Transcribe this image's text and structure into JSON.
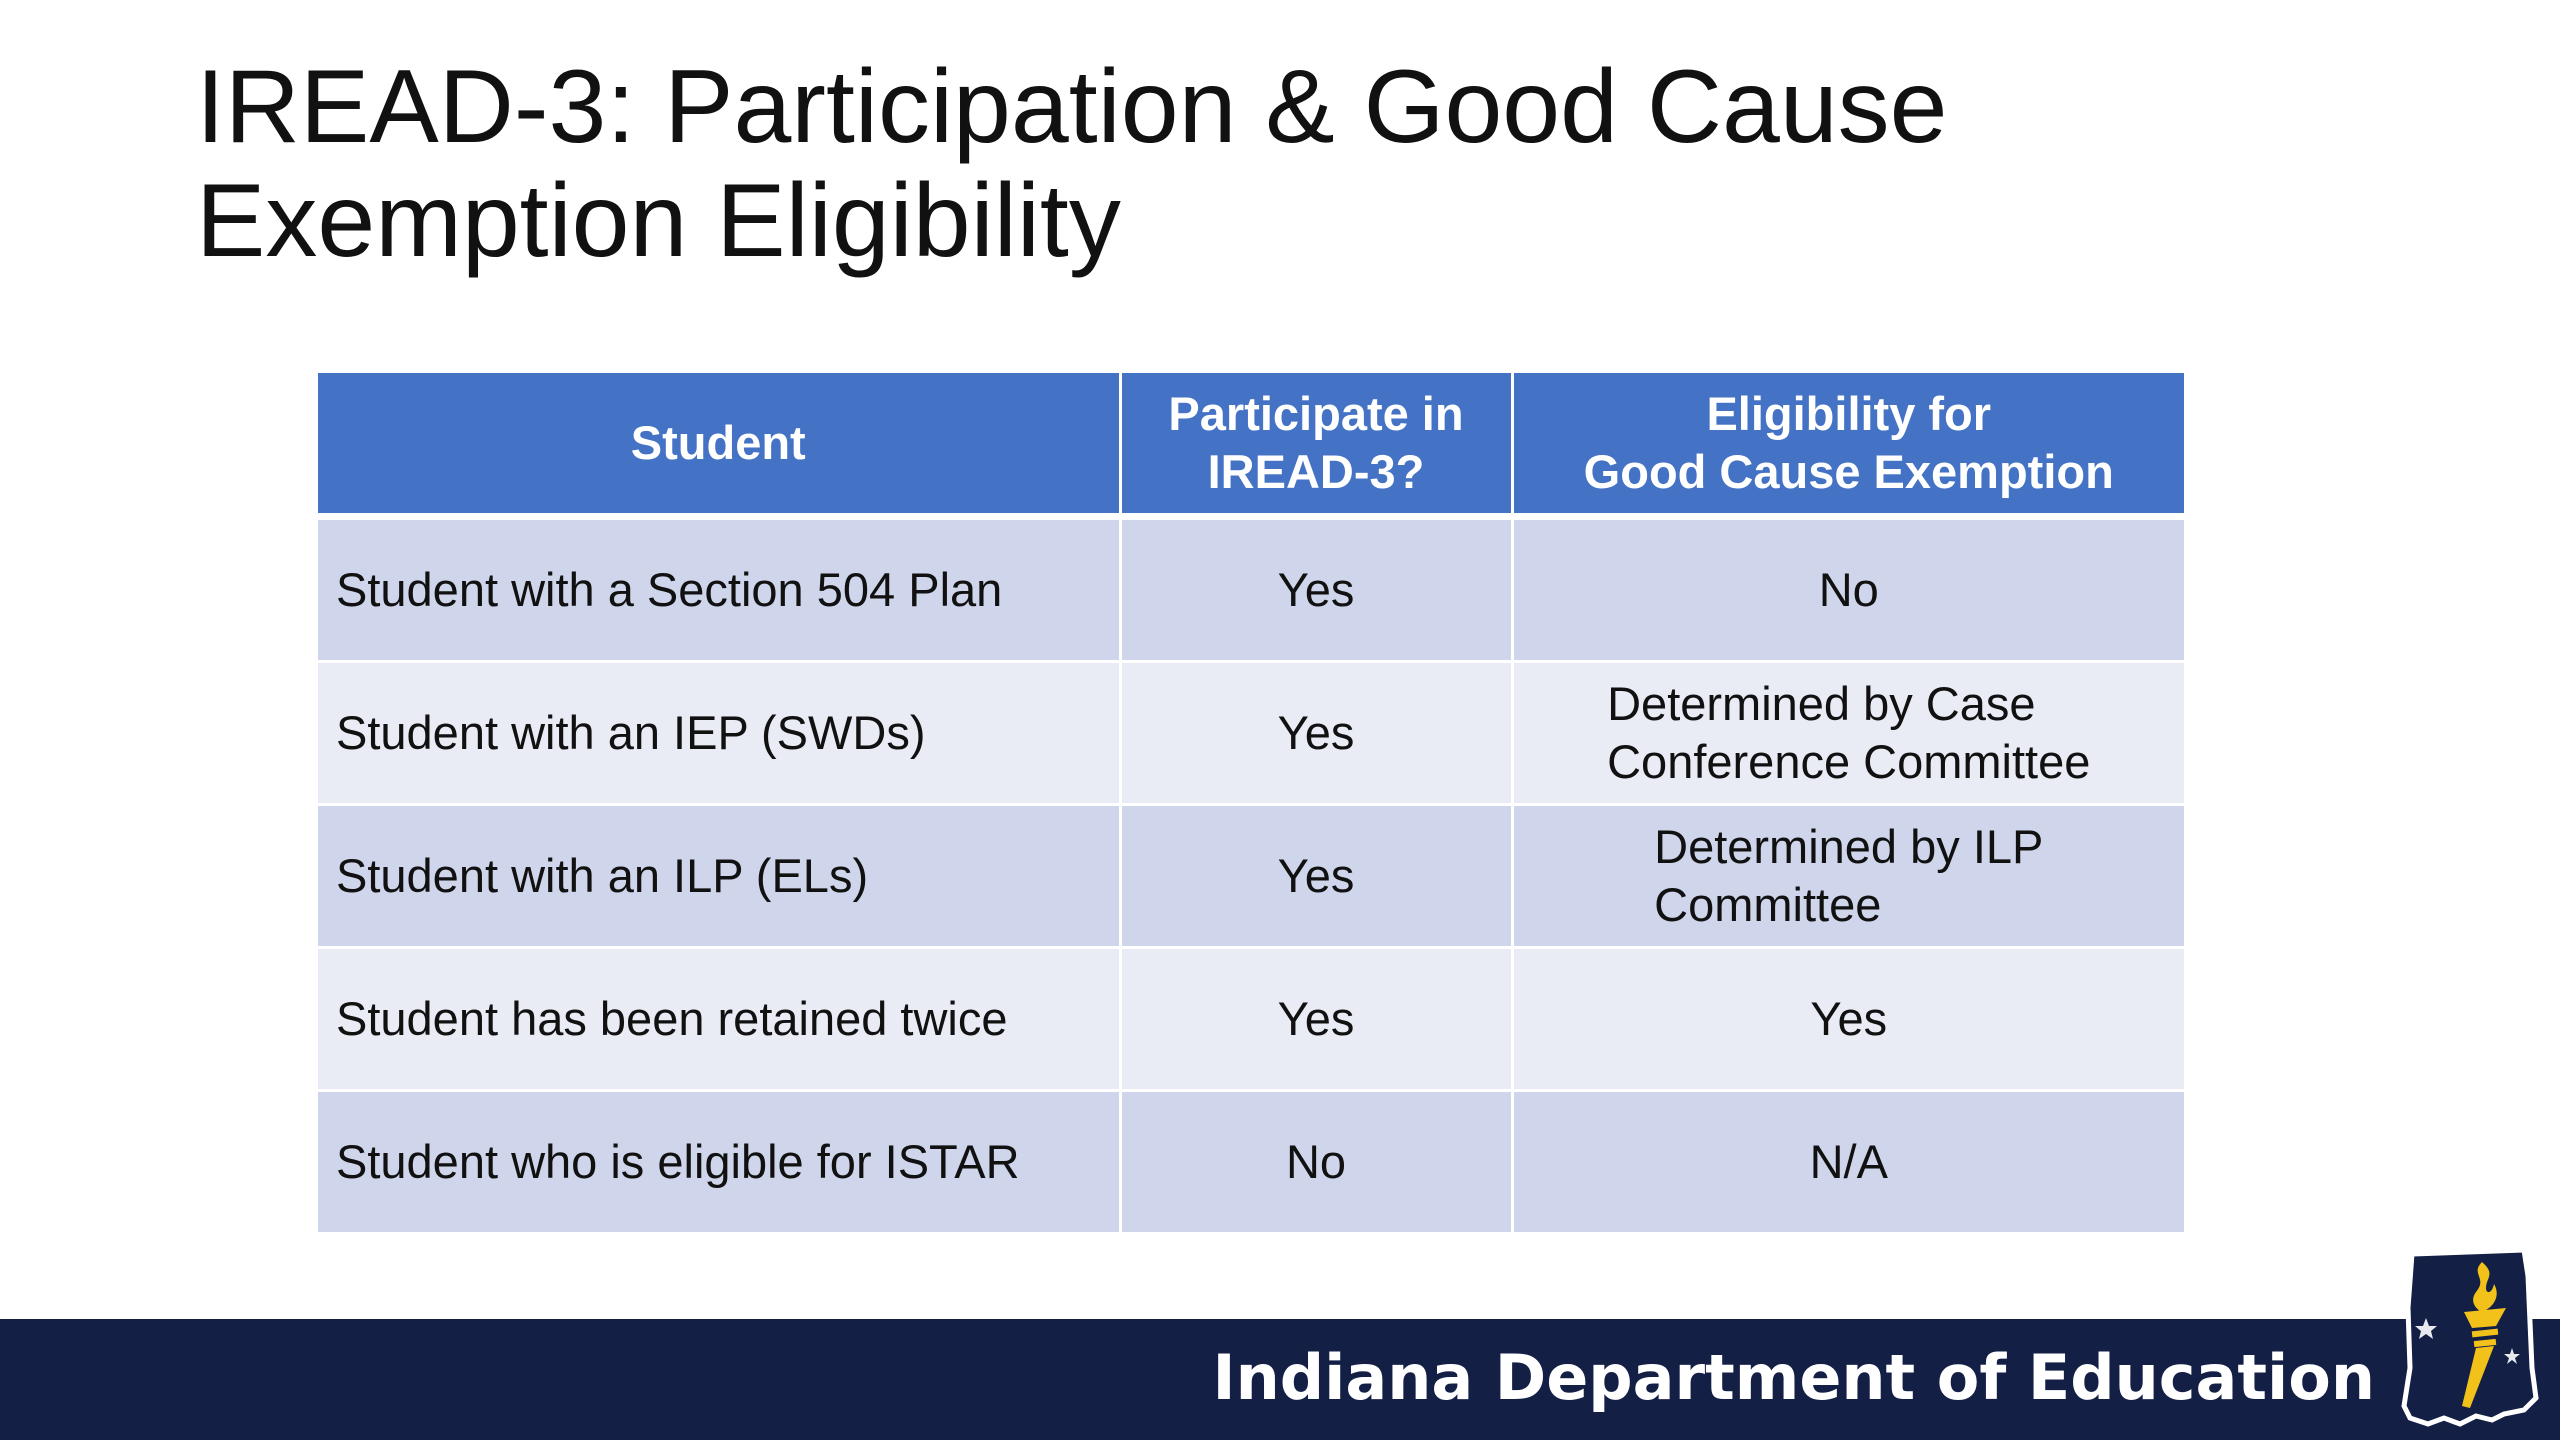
{
  "slide": {
    "title_line1": "IREAD-3: Participation & Good Cause",
    "title_line2": "Exemption Eligibility"
  },
  "table": {
    "headers": {
      "student": "Student",
      "participate_line1": "Participate in",
      "participate_line2": "IREAD-3?",
      "eligibility_line1": "Eligibility for",
      "eligibility_line2": "Good Cause Exemption"
    },
    "rows": [
      {
        "student": "Student with a Section 504 Plan",
        "participate": "Yes",
        "eligibility": "No"
      },
      {
        "student": "Student with an IEP (SWDs)",
        "participate": "Yes",
        "eligibility_line1": "Determined by Case",
        "eligibility_line2": "Conference Committee"
      },
      {
        "student": "Student with an ILP (ELs)",
        "participate": "Yes",
        "eligibility_line1": "Determined by ILP",
        "eligibility_line2": "Committee"
      },
      {
        "student": "Student has been retained twice",
        "participate": "Yes",
        "eligibility": "Yes"
      },
      {
        "student": "Student who is eligible for ISTAR",
        "participate": "No",
        "eligibility": "N/A"
      }
    ]
  },
  "footer": {
    "organization": "Indiana Department of Education",
    "logo_icon": "indiana-torch-logo-icon"
  },
  "colors": {
    "header_fill": "#4472c4",
    "row_dark": "#cfd5ea",
    "row_light": "#e9ebf5",
    "footer_bar": "#141f46",
    "logo_gold": "#f2c21b"
  }
}
